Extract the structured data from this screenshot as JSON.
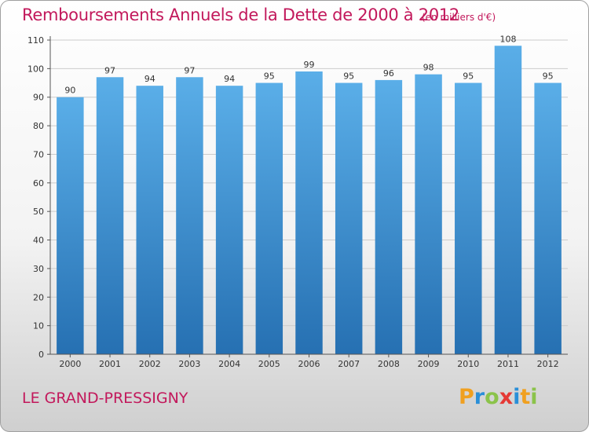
{
  "chart_data": {
    "type": "bar",
    "title": "Remboursements Annuels de la Dette de 2000 à 2012",
    "subtitle": "(en milliers d'€)",
    "categories": [
      "2000",
      "2001",
      "2002",
      "2003",
      "2004",
      "2005",
      "2006",
      "2007",
      "2008",
      "2009",
      "2010",
      "2011",
      "2012"
    ],
    "values": [
      90,
      97,
      94,
      97,
      94,
      95,
      99,
      95,
      96,
      98,
      95,
      108,
      95
    ],
    "ylim": [
      0,
      110
    ],
    "yticks": [
      0,
      10,
      20,
      30,
      40,
      50,
      60,
      70,
      80,
      90,
      100,
      110
    ],
    "xlabel": "",
    "ylabel": "",
    "grid": true,
    "colors": {
      "bar_top": "#5aaee8",
      "bar_bottom": "#2670b2",
      "grid": "#cccccc",
      "text": "#333333"
    }
  },
  "footer": {
    "place": "LE GRAND-PRESSIGNY",
    "logo_letters": [
      {
        "ch": "P",
        "color": "#f0a020"
      },
      {
        "ch": "r",
        "color": "#2a8fd8"
      },
      {
        "ch": "o",
        "color": "#8bc34a"
      },
      {
        "ch": "x",
        "color": "#e53935"
      },
      {
        "ch": "i",
        "color": "#2a8fd8"
      },
      {
        "ch": "t",
        "color": "#f0a020"
      },
      {
        "ch": "i",
        "color": "#8bc34a"
      }
    ]
  }
}
